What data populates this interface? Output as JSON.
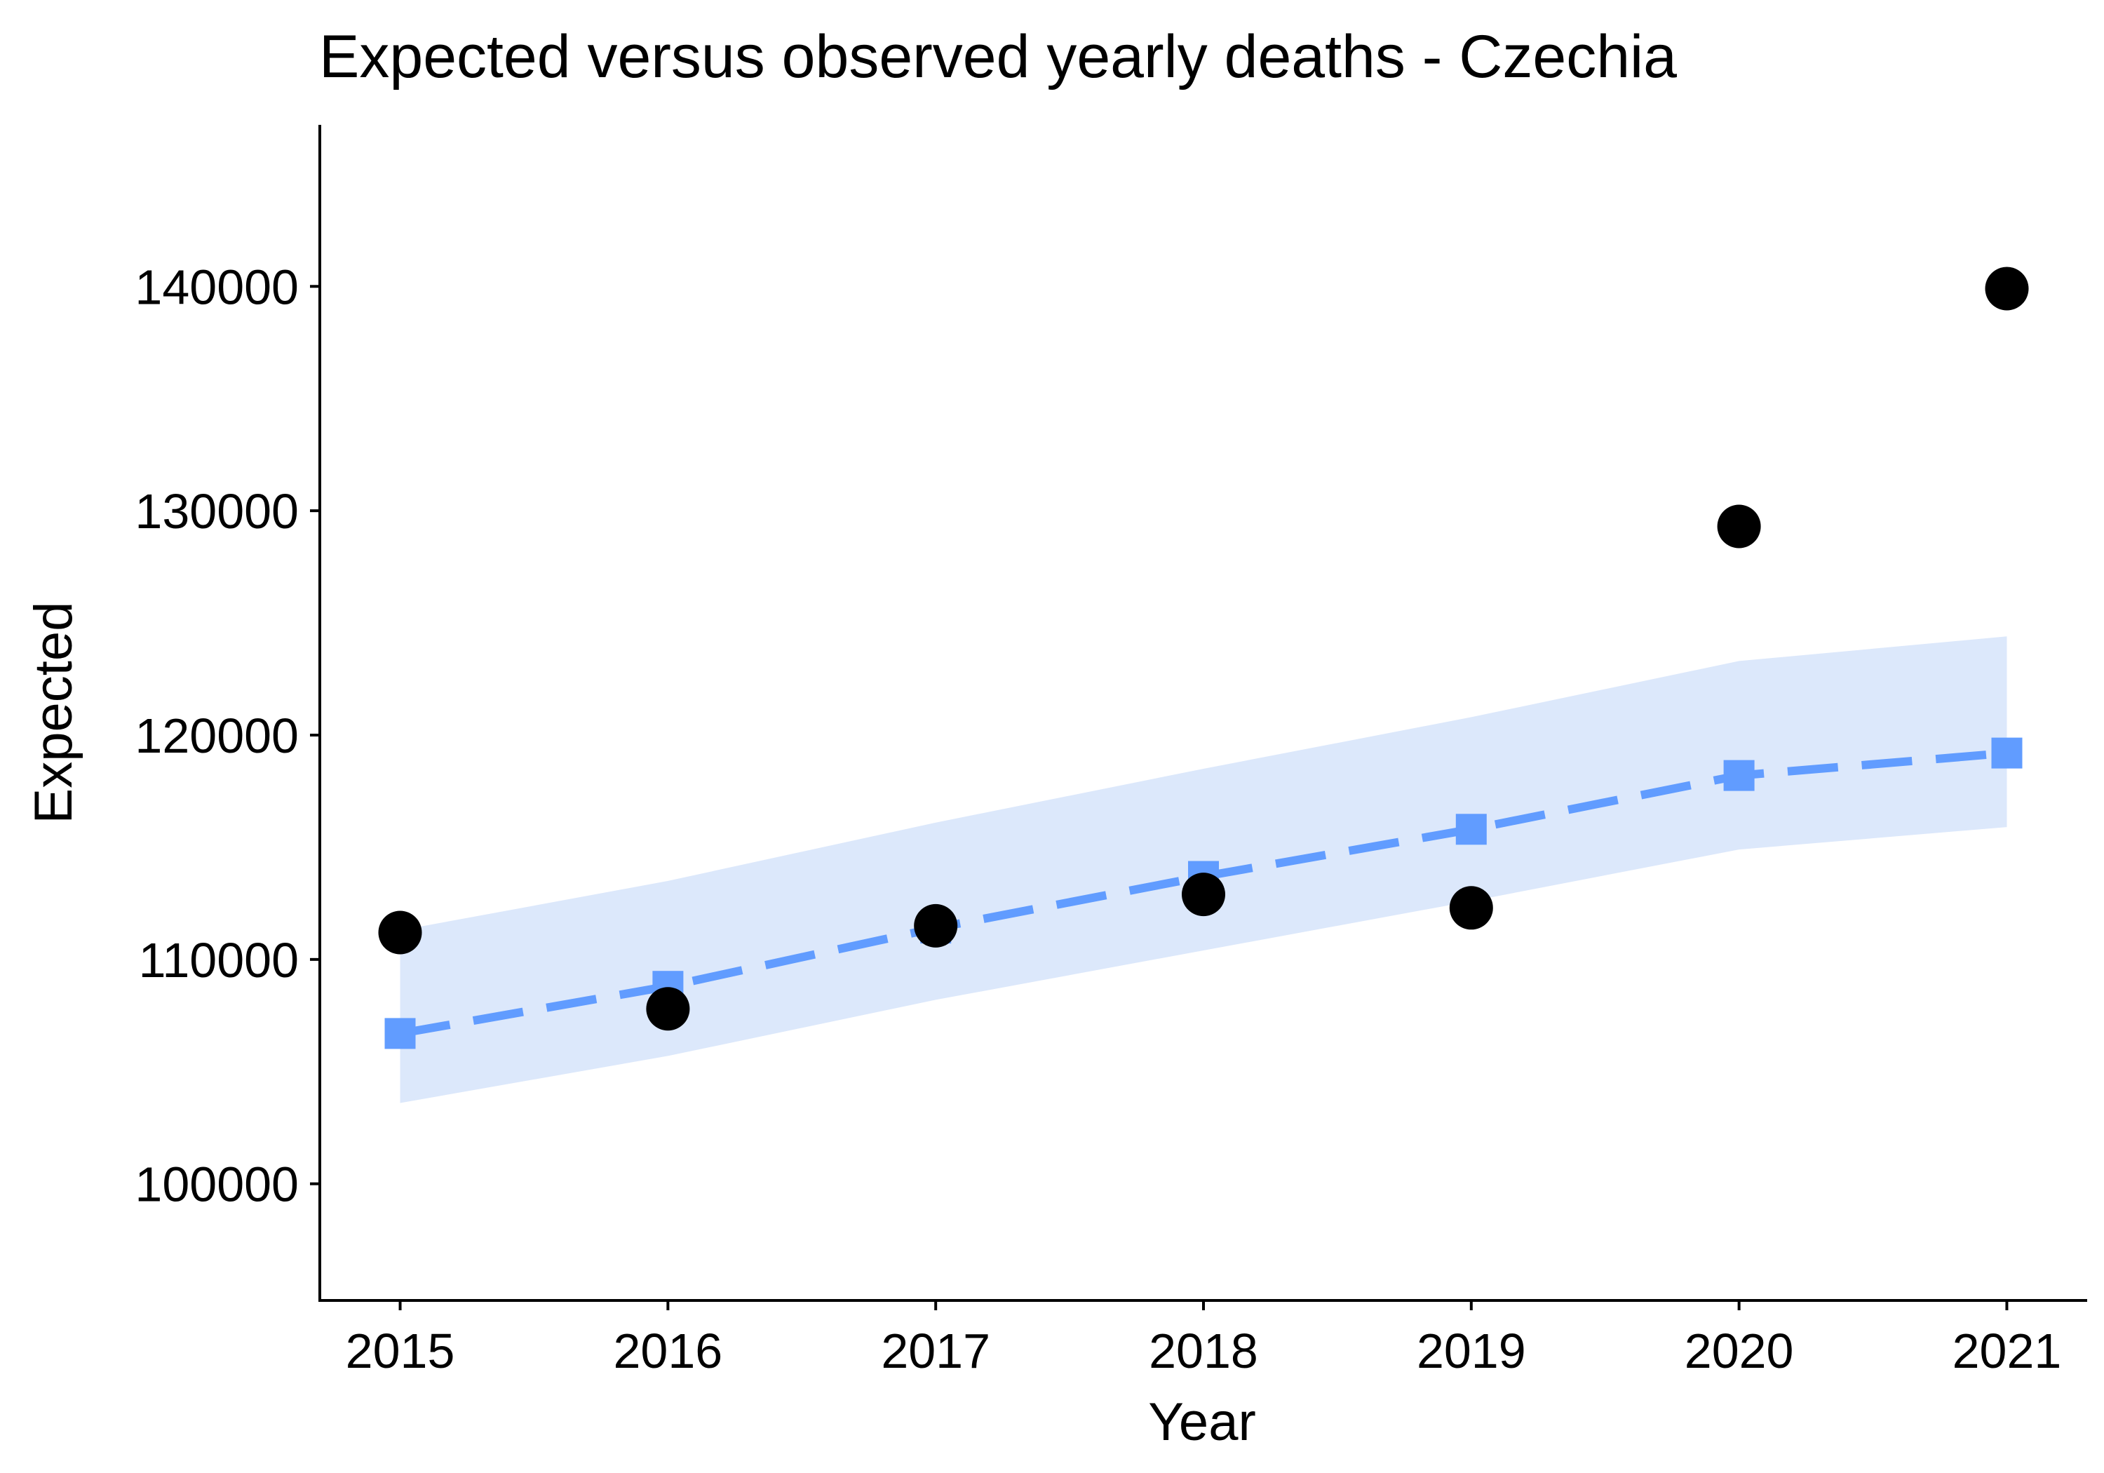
{
  "chart_data": {
    "type": "line",
    "title": "Expected versus observed yearly deaths - Czechia",
    "xlabel": "Year",
    "ylabel": "Expected",
    "x": [
      2015,
      2016,
      2017,
      2018,
      2019,
      2020,
      2021
    ],
    "x_ticks": [
      "2015",
      "2016",
      "2017",
      "2018",
      "2019",
      "2020",
      "2021"
    ],
    "y_ticks": [
      "100000",
      "110000",
      "120000",
      "130000",
      "140000"
    ],
    "y_tick_values": [
      100000,
      110000,
      120000,
      130000,
      140000
    ],
    "xlim": [
      2014.7,
      2021.3
    ],
    "ylim": [
      94800,
      147200
    ],
    "grid": false,
    "legend": "none",
    "series": [
      {
        "kind": "expected",
        "style": "dashed line with square markers",
        "color": "#619CFF",
        "values": [
          106700,
          108800,
          111400,
          113700,
          115800,
          118200,
          119200
        ]
      },
      {
        "kind": "expected-interval",
        "style": "ribbon",
        "color": "#DCE8FB",
        "lower": [
          103600,
          105700,
          108200,
          110400,
          112600,
          114900,
          115900
        ],
        "upper": [
          111300,
          113500,
          116100,
          118500,
          120800,
          123300,
          124400
        ]
      },
      {
        "kind": "observed",
        "style": "points",
        "color": "#000000",
        "values": [
          111200,
          107800,
          111500,
          112900,
          112300,
          129300,
          139900
        ]
      }
    ]
  }
}
